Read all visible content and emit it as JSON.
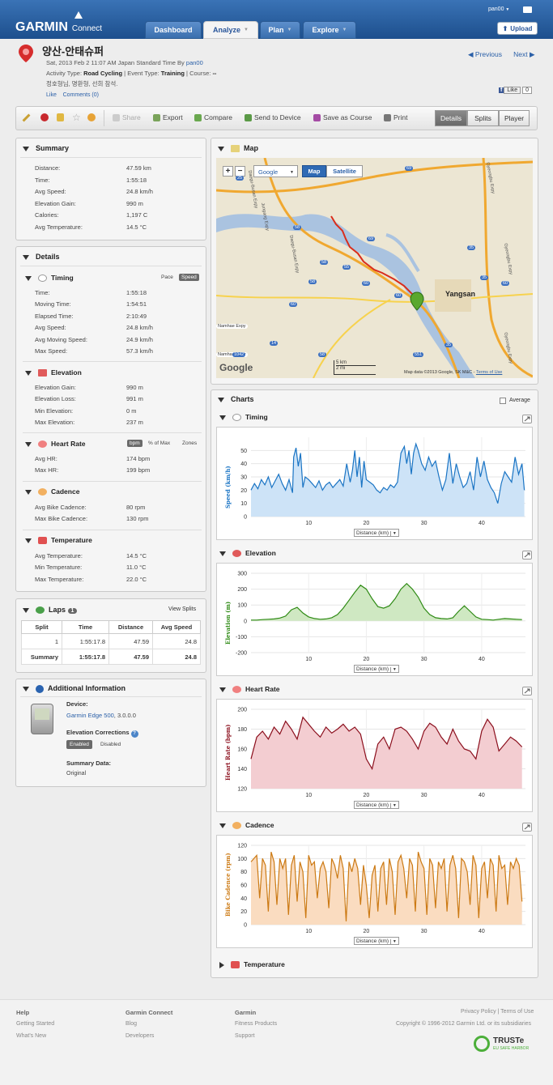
{
  "header": {
    "logo": "GARMIN",
    "logo_sub": "Connect",
    "tabs": [
      {
        "label": "Dashboard"
      },
      {
        "label": "Analyze"
      },
      {
        "label": "Plan"
      },
      {
        "label": "Explore"
      }
    ],
    "username": "pan00",
    "upload_label": "Upload"
  },
  "activity": {
    "title": "양산-안태슈퍼",
    "date_prefix": "Sat, 2013 Feb 2 11:07 AM Japan Standard Time By",
    "author": "pan00",
    "type_label": "Activity Type:",
    "type_value": "Road Cycling",
    "event_label": "| Event Type:",
    "event_value": "Training",
    "course_label": "| Course:",
    "course_value": "--",
    "description": "정호형님, 명환형, 선희 참석.",
    "like_link": "Like",
    "comments_link": "Comments (0)",
    "previous": "Previous",
    "next": "Next",
    "fb_like": "Like",
    "fb_count": "0"
  },
  "toolbar": {
    "share": "Share",
    "export": "Export",
    "compare": "Compare",
    "send": "Send to Device",
    "save_course": "Save as Course",
    "print": "Print",
    "views": [
      "Details",
      "Splits",
      "Player"
    ]
  },
  "summary": {
    "title": "Summary",
    "rows": [
      {
        "label": "Distance:",
        "value": "47.59 km"
      },
      {
        "label": "Time:",
        "value": "1:55:18"
      },
      {
        "label": "Avg Speed:",
        "value": "24.8 km/h"
      },
      {
        "label": "Elevation Gain:",
        "value": "990 m"
      },
      {
        "label": "Calories:",
        "value": "1,197 C"
      },
      {
        "label": "Avg Temperature:",
        "value": "14.5 °C"
      }
    ]
  },
  "details": {
    "title": "Details",
    "timing": {
      "title": "Timing",
      "pace": "Pace",
      "speed": "Speed",
      "rows": [
        {
          "label": "Time:",
          "value": "1:55:18"
        },
        {
          "label": "Moving Time:",
          "value": "1:54:51"
        },
        {
          "label": "Elapsed Time:",
          "value": "2:10:49"
        },
        {
          "label": "Avg Speed:",
          "value": "24.8 km/h"
        },
        {
          "label": "Avg Moving Speed:",
          "value": "24.9 km/h"
        },
        {
          "label": "Max Speed:",
          "value": "57.3 km/h"
        }
      ]
    },
    "elevation": {
      "title": "Elevation",
      "rows": [
        {
          "label": "Elevation Gain:",
          "value": "990 m"
        },
        {
          "label": "Elevation Loss:",
          "value": "991 m"
        },
        {
          "label": "Min Elevation:",
          "value": "0 m"
        },
        {
          "label": "Max Elevation:",
          "value": "237 m"
        }
      ]
    },
    "heart_rate": {
      "title": "Heart Rate",
      "bpm": "bpm",
      "pct_max": "% of Max",
      "zones": "Zones",
      "rows": [
        {
          "label": "Avg HR:",
          "value": "174 bpm"
        },
        {
          "label": "Max HR:",
          "value": "199 bpm"
        }
      ]
    },
    "cadence": {
      "title": "Cadence",
      "rows": [
        {
          "label": "Avg Bike Cadence:",
          "value": "80 rpm"
        },
        {
          "label": "Max Bike Cadence:",
          "value": "130 rpm"
        }
      ]
    },
    "temperature": {
      "title": "Temperature",
      "rows": [
        {
          "label": "Avg Temperature:",
          "value": "14.5 °C"
        },
        {
          "label": "Min Temperature:",
          "value": "11.0 °C"
        },
        {
          "label": "Max Temperature:",
          "value": "22.0 °C"
        }
      ]
    }
  },
  "laps": {
    "title": "Laps",
    "count": "1",
    "view_splits": "View Splits",
    "headers": [
      "Split",
      "Time",
      "Distance",
      "Avg Speed"
    ],
    "rows": [
      [
        "1",
        "1:55:17.8",
        "47.59",
        "24.8"
      ],
      [
        "Summary",
        "1:55:17.8",
        "47.59",
        "24.8"
      ]
    ]
  },
  "additional": {
    "title": "Additional Information",
    "device_label": "Device:",
    "device_name": "Garmin Edge 500",
    "device_version": ", 3.0.0.0",
    "corrections_label": "Elevation Corrections",
    "enabled": "Enabled",
    "disabled": "Disabled",
    "summary_label": "Summary Data:",
    "summary_value": "Original"
  },
  "map": {
    "title": "Map",
    "zoom_in": "+",
    "zoom_out": "−",
    "provider": "Google",
    "map_btn": "Map",
    "satellite_btn": "Satellite",
    "city": "Yangsan",
    "scale_km": "5 km",
    "scale_mi": "2 mi",
    "attribution": "Map data ©2013 Google, SK M&C -",
    "terms": "Terms of Use",
    "google": "Google",
    "road_labels": [
      "Gyeongbu Expy",
      "Gyeongbu Expy",
      "Gyeongbu Expy",
      "Jungang Expy",
      "Daegu-Busan Expy",
      "Daegu-Busan Expy",
      "Namhae Expy",
      "Namhae Expy",
      "25",
      "58",
      "58",
      "60",
      "60",
      "69",
      "55",
      "58",
      "35",
      "35",
      "35",
      "60",
      "69",
      "60",
      "14",
      "1042",
      "551",
      "58"
    ]
  },
  "charts": {
    "title": "Charts",
    "average_label": "Average",
    "distance_select": "Distance (km)",
    "temperature_title": "Temperature"
  },
  "chart_data": [
    {
      "type": "area",
      "title": "Timing",
      "ylabel": "Speed (km/h)",
      "xlabel": "Distance (km)",
      "color": "#1a74c4",
      "fill": "#cde3f7",
      "ylim": [
        0,
        60
      ],
      "xlim": [
        0,
        47.6
      ],
      "yticks": [
        0,
        10,
        20,
        30,
        40,
        50
      ],
      "xticks": [
        10,
        20,
        30,
        40
      ],
      "x": [
        0,
        0.6,
        1.2,
        1.8,
        2.4,
        3,
        3.6,
        4.2,
        4.8,
        5.4,
        6,
        6.6,
        7.2,
        7.4,
        7.8,
        8.2,
        8.6,
        9,
        9.4,
        10,
        10.6,
        11.2,
        11.8,
        12.4,
        13,
        13.6,
        14.2,
        14.8,
        15.4,
        16,
        16.6,
        17.2,
        17.6,
        18,
        18.4,
        18.8,
        19.2,
        19.6,
        20,
        20.6,
        21.2,
        21.8,
        22.4,
        23,
        23.6,
        24.2,
        24.8,
        25.4,
        26,
        26.6,
        27,
        27.4,
        27.8,
        28.2,
        28.6,
        29,
        29.6,
        30.2,
        30.8,
        31.4,
        32,
        32.6,
        33.2,
        33.8,
        34.4,
        35,
        35.6,
        36.2,
        36.8,
        37.4,
        38,
        38.6,
        39.2,
        39.8,
        40.4,
        41,
        41.6,
        42.2,
        42.8,
        43.4,
        44,
        44.6,
        45.2,
        45.8,
        46.4,
        47,
        47.4
      ],
      "y": [
        20,
        25,
        21,
        28,
        24,
        30,
        22,
        27,
        32,
        25,
        20,
        28,
        18,
        45,
        52,
        38,
        48,
        22,
        30,
        28,
        25,
        22,
        27,
        20,
        24,
        26,
        22,
        25,
        28,
        23,
        40,
        26,
        35,
        50,
        30,
        45,
        22,
        42,
        28,
        26,
        24,
        20,
        18,
        22,
        20,
        24,
        22,
        26,
        48,
        53,
        40,
        50,
        32,
        48,
        55,
        50,
        40,
        35,
        45,
        38,
        42,
        30,
        20,
        28,
        48,
        25,
        40,
        30,
        22,
        25,
        34,
        20,
        45,
        30,
        42,
        28,
        22,
        18,
        10,
        25,
        34,
        30,
        26,
        45,
        32,
        40,
        20
      ]
    },
    {
      "type": "area",
      "title": "Elevation",
      "ylabel": "Elevation (m)",
      "xlabel": "Distance (km)",
      "color": "#2e8a14",
      "fill": "#cfe8c2",
      "ylim": [
        -200,
        300
      ],
      "xlim": [
        0,
        47.6
      ],
      "yticks": [
        -200,
        -100,
        0,
        100,
        200,
        300
      ],
      "xticks": [
        10,
        20,
        30,
        40
      ],
      "x": [
        0,
        1,
        2,
        3,
        4,
        5,
        6,
        7,
        8,
        9,
        10,
        11,
        12,
        13,
        14,
        15,
        16,
        17,
        18,
        19,
        20,
        21,
        22,
        23,
        24,
        25,
        26,
        27,
        28,
        29,
        30,
        31,
        32,
        33,
        34,
        35,
        36,
        37,
        38,
        39,
        40,
        41,
        42,
        43,
        44,
        45,
        46,
        47
      ],
      "y": [
        5,
        5,
        8,
        10,
        12,
        18,
        30,
        70,
        85,
        50,
        25,
        15,
        10,
        12,
        20,
        40,
        80,
        130,
        180,
        225,
        200,
        140,
        90,
        80,
        95,
        140,
        200,
        235,
        200,
        150,
        80,
        40,
        20,
        15,
        12,
        20,
        60,
        95,
        60,
        25,
        10,
        8,
        5,
        10,
        15,
        12,
        10,
        8
      ]
    },
    {
      "type": "area",
      "title": "Heart Rate",
      "ylabel": "Heart Rate (bpm)",
      "xlabel": "Distance (km)",
      "color": "#8b0e1c",
      "fill": "#f3cdd1",
      "ylim": [
        120,
        200
      ],
      "xlim": [
        0,
        47.6
      ],
      "yticks": [
        120,
        140,
        160,
        180,
        200
      ],
      "xticks": [
        10,
        20,
        30,
        40
      ],
      "x": [
        0,
        1,
        2,
        3,
        4,
        5,
        6,
        7,
        8,
        9,
        10,
        11,
        12,
        13,
        14,
        15,
        16,
        17,
        18,
        19,
        20,
        21,
        22,
        23,
        24,
        25,
        26,
        27,
        28,
        29,
        30,
        31,
        32,
        33,
        34,
        35,
        36,
        37,
        38,
        39,
        40,
        41,
        42,
        43,
        44,
        45,
        46,
        47
      ],
      "y": [
        150,
        172,
        178,
        170,
        182,
        175,
        188,
        180,
        170,
        192,
        185,
        178,
        172,
        182,
        176,
        180,
        185,
        178,
        182,
        175,
        150,
        140,
        165,
        172,
        160,
        180,
        182,
        178,
        170,
        160,
        178,
        186,
        182,
        172,
        165,
        180,
        168,
        160,
        158,
        150,
        178,
        190,
        182,
        158,
        165,
        172,
        168,
        162
      ]
    },
    {
      "type": "area",
      "title": "Cadence",
      "ylabel": "Bike Cadence (rpm)",
      "xlabel": "Distance (km)",
      "color": "#cc7a14",
      "fill": "#fadcc0",
      "ylim": [
        0,
        120
      ],
      "xlim": [
        0,
        47.6
      ],
      "yticks": [
        0,
        20,
        40,
        60,
        80,
        100,
        120
      ],
      "xticks": [
        10,
        20,
        30,
        40
      ],
      "x": [
        0,
        1,
        1.5,
        2,
        2.5,
        3,
        3.5,
        4,
        4.5,
        5,
        5.5,
        6,
        6.5,
        7,
        7.5,
        8,
        8.5,
        9,
        9.5,
        10,
        10.5,
        11,
        11.5,
        12,
        12.5,
        13,
        13.5,
        14,
        14.5,
        15,
        15.5,
        16,
        16.5,
        17,
        17.5,
        18,
        18.5,
        19,
        19.5,
        20,
        20.5,
        21,
        21.5,
        22,
        22.5,
        23,
        23.5,
        24,
        24.5,
        25,
        25.5,
        26,
        26.5,
        27,
        27.5,
        28,
        28.5,
        29,
        29.5,
        30,
        30.5,
        31,
        31.5,
        32,
        32.5,
        33,
        33.5,
        34,
        34.5,
        35,
        35.5,
        36,
        36.5,
        37,
        37.5,
        38,
        38.5,
        39,
        39.5,
        40,
        40.5,
        41,
        41.5,
        42,
        42.5,
        43,
        43.5,
        44,
        44.5,
        45,
        45.5,
        46,
        46.5,
        47
      ],
      "y": [
        95,
        105,
        40,
        100,
        90,
        20,
        110,
        95,
        30,
        100,
        85,
        100,
        15,
        90,
        105,
        35,
        95,
        80,
        10,
        105,
        90,
        95,
        40,
        85,
        95,
        80,
        25,
        100,
        90,
        70,
        105,
        85,
        5,
        95,
        80,
        100,
        85,
        30,
        90,
        60,
        10,
        75,
        90,
        20,
        85,
        95,
        30,
        100,
        80,
        15,
        95,
        105,
        85,
        40,
        100,
        90,
        20,
        110,
        95,
        85,
        15,
        100,
        90,
        25,
        95,
        85,
        100,
        20,
        90,
        105,
        85,
        10,
        100,
        95,
        80,
        30,
        105,
        90,
        10,
        85,
        95,
        40,
        100,
        90,
        20,
        105,
        85,
        90,
        30,
        95,
        85,
        100,
        90,
        35
      ]
    }
  ],
  "footer": {
    "col1_title": "Help",
    "col1_links": [
      "Getting Started",
      "What's New"
    ],
    "col2_title": "Garmin Connect",
    "col2_links": [
      "Blog",
      "Developers"
    ],
    "col3_title": "Garmin",
    "col3_links": [
      "Fitness Products",
      "Support"
    ],
    "privacy": "Privacy Policy",
    "terms": "Terms of Use",
    "copyright": "Copyright © 1996-2012 Garmin Ltd. or its subsidiaries",
    "truste": "TRUSTe",
    "truste_sub": "EU SAFE HARBOR"
  },
  "colors": {
    "nav_blue": "#1d4f8d",
    "link_blue": "#2b60a8",
    "route_red": "#d92d1c"
  }
}
